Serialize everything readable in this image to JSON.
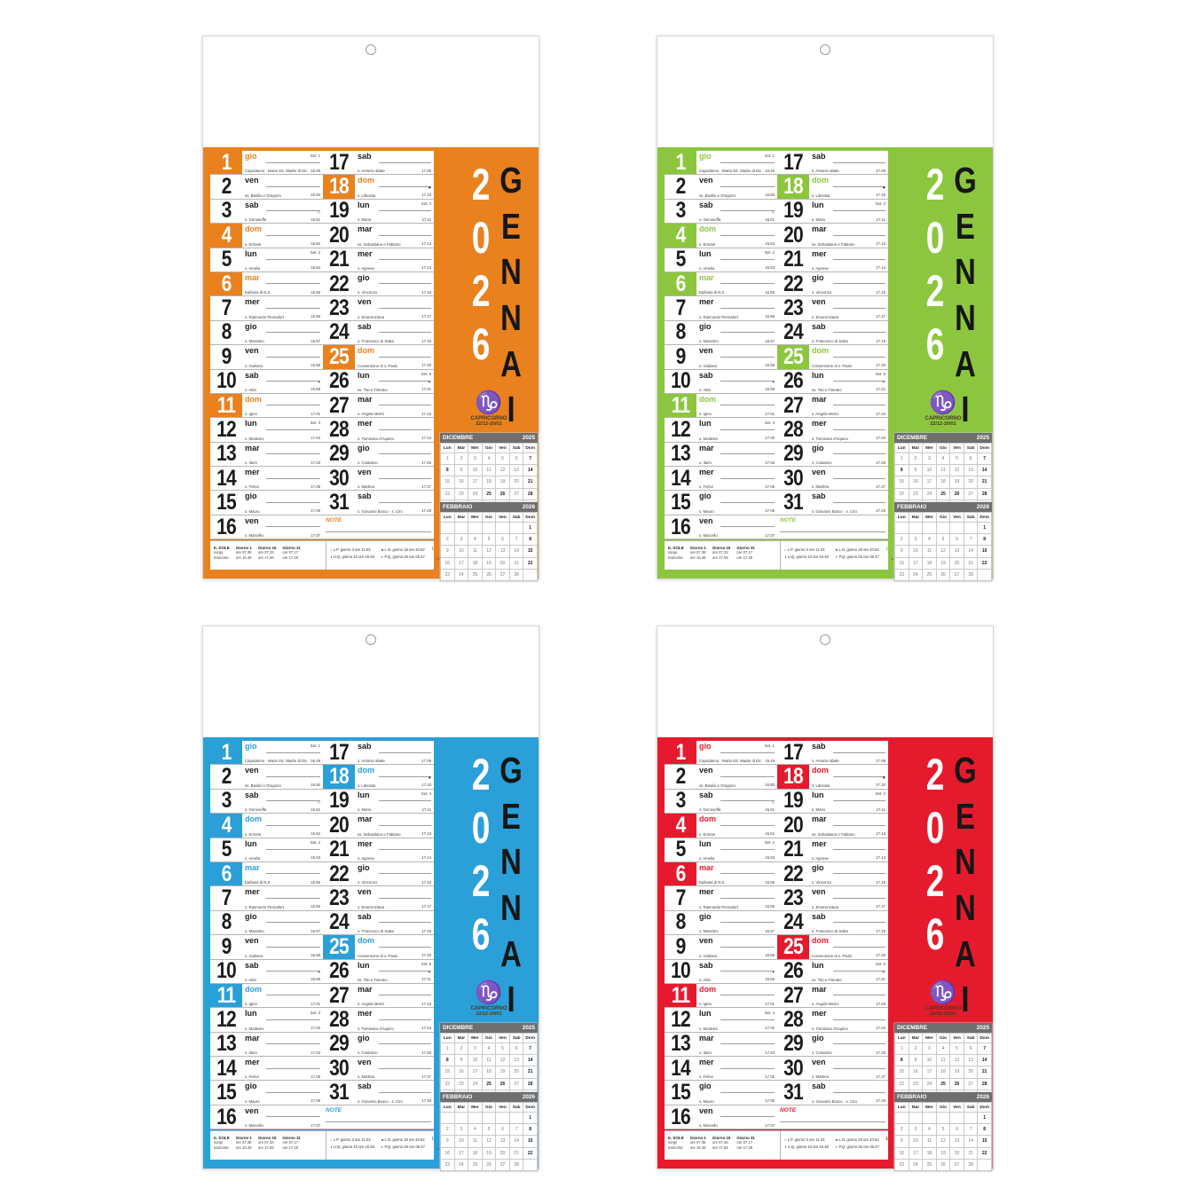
{
  "variants": [
    {
      "name": "orange",
      "accent": "#E8811E"
    },
    {
      "name": "green",
      "accent": "#8CC63E"
    },
    {
      "name": "blue",
      "accent": "#2B9FD8"
    },
    {
      "name": "red",
      "accent": "#E51B2D"
    }
  ],
  "calendar": {
    "year": "2026",
    "month": "GENNAIO",
    "note_label": "NOTE",
    "days_left": [
      {
        "num": "1",
        "name": "gio",
        "saint": "Capodanno · Maria SS. Madre di Dio",
        "week": "Set. 1",
        "moon": "",
        "time": "16.49",
        "hl": true,
        "acc": true
      },
      {
        "num": "2",
        "name": "ven",
        "saint": "ss. Basilio e Gregorio",
        "week": "",
        "moon": "",
        "time": "16.50",
        "hl": false,
        "acc": false
      },
      {
        "num": "3",
        "name": "sab",
        "saint": "s. Genoveffa",
        "week": "",
        "moon": "○",
        "time": "16.51",
        "hl": false,
        "acc": false
      },
      {
        "num": "4",
        "name": "dom",
        "saint": "s. Ermete",
        "week": "",
        "moon": "",
        "time": "16.52",
        "hl": true,
        "acc": true
      },
      {
        "num": "5",
        "name": "lun",
        "saint": "s. Amelia",
        "week": "Set. 2",
        "moon": "",
        "time": "16.53",
        "hl": false,
        "acc": false
      },
      {
        "num": "6",
        "name": "mar",
        "saint": "Epifania di N.S.",
        "week": "",
        "moon": "",
        "time": "16.55",
        "hl": true,
        "acc": true
      },
      {
        "num": "7",
        "name": "mer",
        "saint": "s. Raimondo Pennafort",
        "week": "",
        "moon": "",
        "time": "16.56",
        "hl": false,
        "acc": false
      },
      {
        "num": "8",
        "name": "gio",
        "saint": "s. Massimo",
        "week": "",
        "moon": "",
        "time": "16.57",
        "hl": false,
        "acc": false
      },
      {
        "num": "9",
        "name": "ven",
        "saint": "s. Giuliano",
        "week": "",
        "moon": "",
        "time": "16.58",
        "hl": false,
        "acc": false
      },
      {
        "num": "10",
        "name": "sab",
        "saint": "s. Aldo",
        "week": "",
        "moon": "◑",
        "time": "16.59",
        "hl": false,
        "acc": false
      },
      {
        "num": "11",
        "name": "dom",
        "saint": "s. Igino",
        "week": "",
        "moon": "",
        "time": "17.01",
        "hl": true,
        "acc": true
      },
      {
        "num": "12",
        "name": "lun",
        "saint": "s. Modesto",
        "week": "Set. 3",
        "moon": "",
        "time": "17.02",
        "hl": false,
        "acc": false
      },
      {
        "num": "13",
        "name": "mar",
        "saint": "s. Ilario",
        "week": "",
        "moon": "",
        "time": "17.03",
        "hl": false,
        "acc": false
      },
      {
        "num": "14",
        "name": "mer",
        "saint": "s. Felice",
        "week": "",
        "moon": "",
        "time": "17.05",
        "hl": false,
        "acc": false
      },
      {
        "num": "15",
        "name": "gio",
        "saint": "s. Mauro",
        "week": "",
        "moon": "",
        "time": "17.06",
        "hl": false,
        "acc": false
      },
      {
        "num": "16",
        "name": "ven",
        "saint": "s. Marcello",
        "week": "",
        "moon": "",
        "time": "17.07",
        "hl": false,
        "acc": false
      }
    ],
    "days_right": [
      {
        "num": "17",
        "name": "sab",
        "saint": "s. Antonio abate",
        "week": "",
        "moon": "",
        "time": "17.09",
        "hl": false,
        "acc": false
      },
      {
        "num": "18",
        "name": "dom",
        "saint": "s. Liberata",
        "week": "",
        "moon": "●",
        "time": "17.10",
        "hl": true,
        "acc": true
      },
      {
        "num": "19",
        "name": "lun",
        "saint": "s. Mario",
        "week": "Set. 4",
        "moon": "",
        "time": "17.11",
        "hl": false,
        "acc": false
      },
      {
        "num": "20",
        "name": "mar",
        "saint": "ss. Sebastiano e Fabiano",
        "week": "",
        "moon": "",
        "time": "17.13",
        "hl": false,
        "acc": false
      },
      {
        "num": "21",
        "name": "mer",
        "saint": "s. Agnese",
        "week": "",
        "moon": "",
        "time": "17.14",
        "hl": false,
        "acc": false
      },
      {
        "num": "22",
        "name": "gio",
        "saint": "s. Vincenzo",
        "week": "",
        "moon": "",
        "time": "17.16",
        "hl": false,
        "acc": false
      },
      {
        "num": "23",
        "name": "ven",
        "saint": "s. Emerenziana",
        "week": "",
        "moon": "",
        "time": "17.17",
        "hl": false,
        "acc": false
      },
      {
        "num": "24",
        "name": "sab",
        "saint": "s. Francesco di Sales",
        "week": "",
        "moon": "",
        "time": "17.19",
        "hl": false,
        "acc": false
      },
      {
        "num": "25",
        "name": "dom",
        "saint": "Conversione di s. Paolo",
        "week": "",
        "moon": "",
        "time": "17.20",
        "hl": true,
        "acc": true
      },
      {
        "num": "26",
        "name": "lun",
        "saint": "ss. Tito e Timoteo",
        "week": "Set. 5",
        "moon": "◐",
        "time": "17.21",
        "hl": false,
        "acc": false
      },
      {
        "num": "27",
        "name": "mar",
        "saint": "s. Angela Merici",
        "week": "",
        "moon": "",
        "time": "17.23",
        "hl": false,
        "acc": false
      },
      {
        "num": "28",
        "name": "mer",
        "saint": "s. Tommaso d'Aquino",
        "week": "",
        "moon": "",
        "time": "17.24",
        "hl": false,
        "acc": false
      },
      {
        "num": "29",
        "name": "gio",
        "saint": "s. Costanzo",
        "week": "",
        "moon": "",
        "time": "17.26",
        "hl": false,
        "acc": false
      },
      {
        "num": "30",
        "name": "ven",
        "saint": "s. Martina",
        "week": "",
        "moon": "",
        "time": "17.27",
        "hl": false,
        "acc": false
      },
      {
        "num": "31",
        "name": "sab",
        "saint": "s. Giovanni Bosco · s. Ciro",
        "week": "",
        "moon": "",
        "time": "17.29",
        "hl": false,
        "acc": false
      }
    ],
    "zodiac": {
      "symbol": "♑",
      "name": "CAPRICORNO",
      "range": "22/12-20/01"
    },
    "mini_calendars": [
      {
        "title": "DICEMBRE",
        "year": "2025",
        "dow": [
          "Lun",
          "Mar",
          "Mer",
          "Gio",
          "Ven",
          "Sab",
          "Dom"
        ],
        "weeks": [
          [
            "1",
            "2",
            "3",
            "4",
            "5",
            "6",
            "7"
          ],
          [
            "8",
            "9",
            "10",
            "11",
            "12",
            "13",
            "14"
          ],
          [
            "15",
            "16",
            "17",
            "18",
            "19",
            "20",
            "21"
          ],
          [
            "22",
            "23",
            "24",
            "25",
            "26",
            "27",
            "28"
          ],
          [
            "29",
            "30",
            "31",
            "",
            "",
            "",
            ""
          ]
        ],
        "bold": [
          "7",
          "8",
          "14",
          "21",
          "25",
          "26",
          "28"
        ]
      },
      {
        "title": "FEBBRAIO",
        "year": "2026",
        "dow": [
          "Lun",
          "Mar",
          "Mer",
          "Gio",
          "Ven",
          "Sab",
          "Dom"
        ],
        "weeks": [
          [
            "",
            "",
            "",
            "",
            "",
            "",
            "1"
          ],
          [
            "2",
            "3",
            "4",
            "5",
            "6",
            "7",
            "8"
          ],
          [
            "9",
            "10",
            "11",
            "12",
            "13",
            "14",
            "15"
          ],
          [
            "16",
            "17",
            "18",
            "19",
            "20",
            "21",
            "22"
          ],
          [
            "23",
            "24",
            "25",
            "26",
            "27",
            "28",
            ""
          ]
        ],
        "bold": [
          "1",
          "8",
          "15",
          "22"
        ]
      }
    ],
    "footer": {
      "sun": {
        "title": "IL SOLE",
        "sub1": "sorge",
        "sub2": "tramonta",
        "cols": [
          {
            "label": "Giorno 1",
            "rise": "ore 07.38",
            "set": "ore 16.49"
          },
          {
            "label": "Giorno 15",
            "rise": "ore 07.33",
            "set": "ore 17.06"
          },
          {
            "label": "Giorno 31",
            "rise": "ore 07.17",
            "set": "ore 17.29"
          }
        ]
      },
      "moon": {
        "col1": [
          "○ L.P.  giorno 3  ore 11.03",
          "◑ U.Q.  giorno 10  ore 16.48"
        ],
        "col2": [
          "● L.N.  giorno 18  ore 20.52",
          "◐ P.Q.  giorno 26  ore 05.47"
        ],
        "label": "LUNA",
        "sub": "fasi lunari"
      }
    }
  }
}
